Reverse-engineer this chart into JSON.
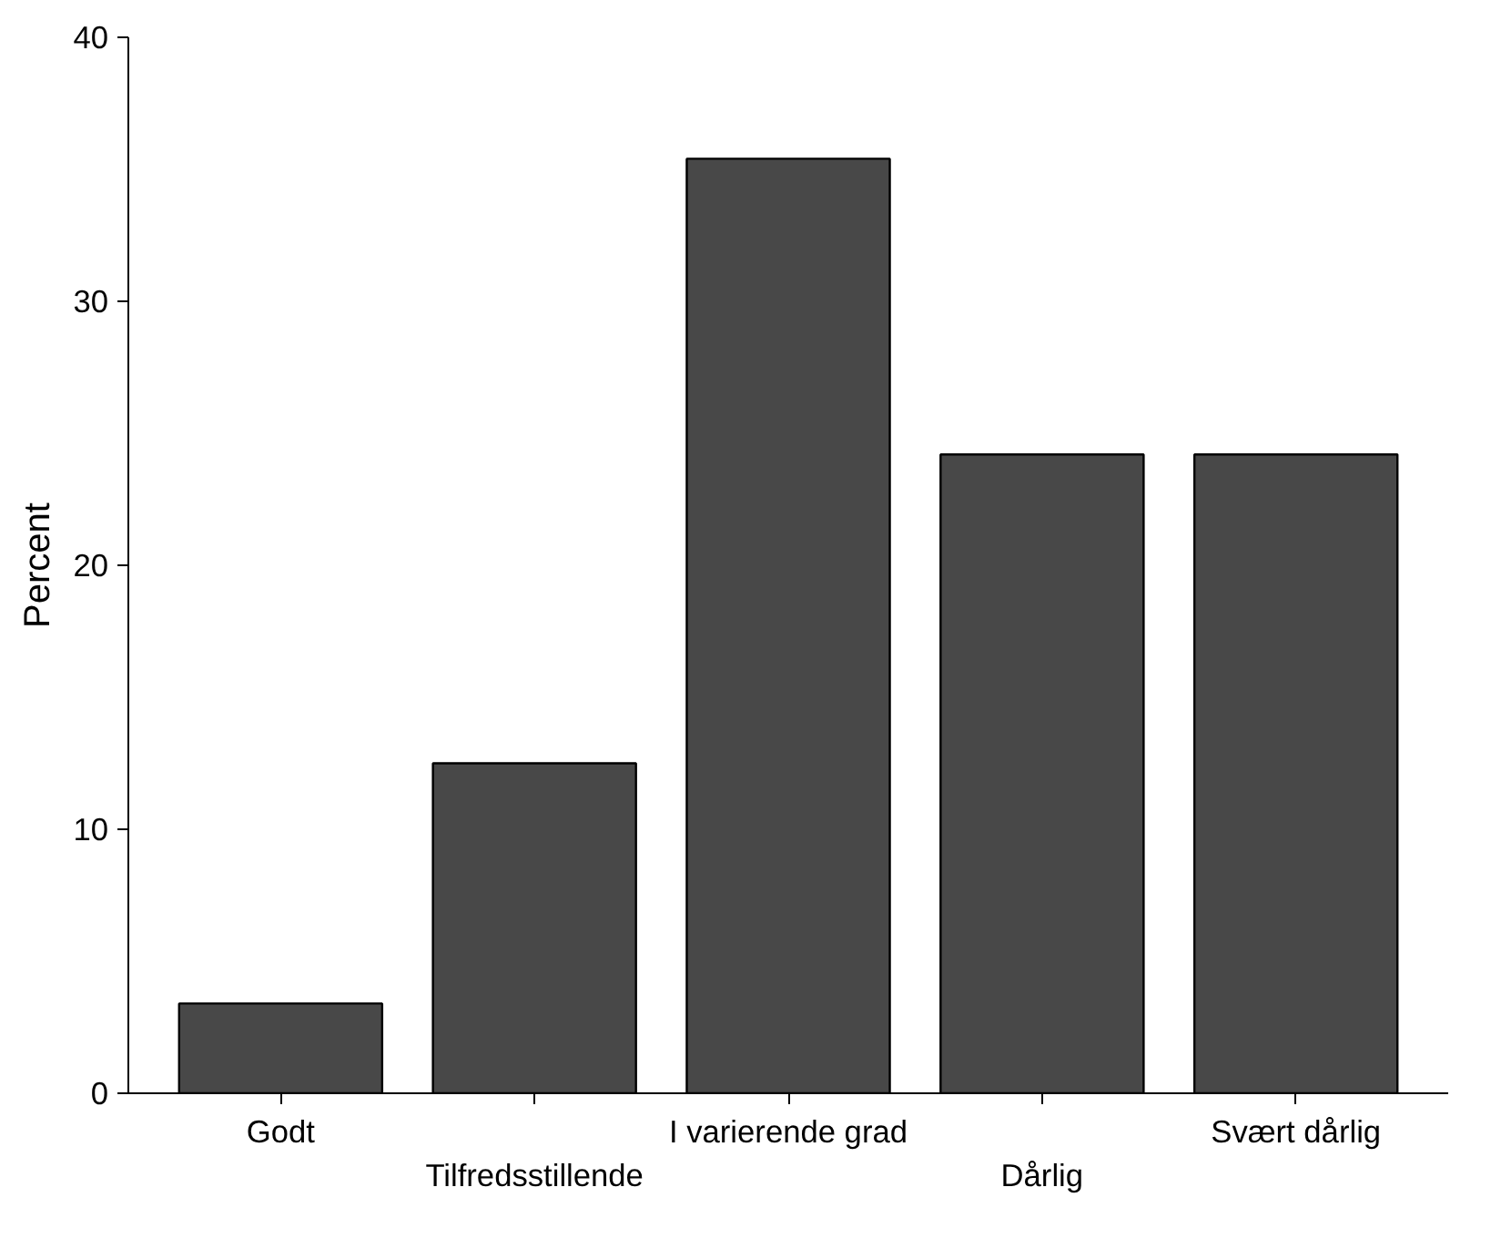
{
  "chart_data": {
    "type": "bar",
    "ylabel": "Percent",
    "categories": [
      "Godt",
      "Tilfredsstillende",
      "I varierende grad",
      "Dårlig",
      "Svært dårlig"
    ],
    "values": [
      3.4,
      12.5,
      35.4,
      24.2,
      24.2
    ],
    "color": "#484848",
    "ylim": [
      0,
      40
    ],
    "yticks": [
      0,
      10,
      20,
      30,
      40
    ],
    "grid": false
  }
}
